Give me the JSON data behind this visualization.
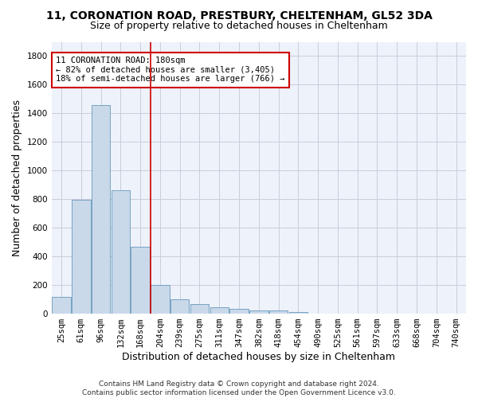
{
  "title_line1": "11, CORONATION ROAD, PRESTBURY, CHELTENHAM, GL52 3DA",
  "title_line2": "Size of property relative to detached houses in Cheltenham",
  "xlabel": "Distribution of detached houses by size in Cheltenham",
  "ylabel": "Number of detached properties",
  "bar_color": "#c9d9ea",
  "bar_edge_color": "#6699bb",
  "background_color": "#eef2fa",
  "grid_color": "#ccccdd",
  "categories": [
    "25sqm",
    "61sqm",
    "96sqm",
    "132sqm",
    "168sqm",
    "204sqm",
    "239sqm",
    "275sqm",
    "311sqm",
    "347sqm",
    "382sqm",
    "418sqm",
    "454sqm",
    "490sqm",
    "525sqm",
    "561sqm",
    "597sqm",
    "633sqm",
    "668sqm",
    "704sqm",
    "740sqm"
  ],
  "values": [
    120,
    795,
    1460,
    862,
    470,
    200,
    100,
    65,
    45,
    32,
    25,
    20,
    12,
    0,
    0,
    0,
    0,
    0,
    0,
    0,
    0
  ],
  "ylim": [
    0,
    1900
  ],
  "yticks": [
    0,
    200,
    400,
    600,
    800,
    1000,
    1200,
    1400,
    1600,
    1800
  ],
  "vline_x": 4.5,
  "vline_color": "#cc0000",
  "annotation_text": "11 CORONATION ROAD: 180sqm\n← 82% of detached houses are smaller (3,405)\n18% of semi-detached houses are larger (766) →",
  "annotation_box_color": "#ffffff",
  "annotation_box_edge": "#cc0000",
  "footer_line1": "Contains HM Land Registry data © Crown copyright and database right 2024.",
  "footer_line2": "Contains public sector information licensed under the Open Government Licence v3.0.",
  "title_fontsize": 10,
  "subtitle_fontsize": 9,
  "tick_fontsize": 7.5,
  "label_fontsize": 9,
  "footer_fontsize": 6.5
}
